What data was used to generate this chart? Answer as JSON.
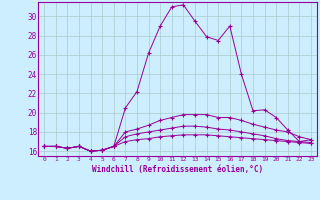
{
  "xlabel": "Windchill (Refroidissement éolien,°C)",
  "background_color": "#cceeff",
  "line_color": "#990099",
  "grid_color": "#aacccc",
  "xmin": -0.5,
  "xmax": 23.5,
  "ymin": 15.5,
  "ymax": 31.5,
  "yticks": [
    16,
    18,
    20,
    22,
    24,
    26,
    28,
    30
  ],
  "xticks": [
    0,
    1,
    2,
    3,
    4,
    5,
    6,
    7,
    8,
    9,
    10,
    11,
    12,
    13,
    14,
    15,
    16,
    17,
    18,
    19,
    20,
    21,
    22,
    23
  ],
  "series": [
    [
      16.5,
      16.5,
      16.3,
      16.5,
      16.0,
      16.1,
      16.5,
      20.5,
      22.2,
      26.2,
      29.0,
      31.0,
      31.2,
      29.5,
      27.9,
      27.5,
      29.0,
      24.0,
      20.2,
      20.3,
      19.5,
      18.2,
      17.0,
      17.2
    ],
    [
      16.5,
      16.5,
      16.3,
      16.5,
      16.0,
      16.1,
      16.5,
      18.0,
      18.3,
      18.7,
      19.2,
      19.5,
      19.8,
      19.8,
      19.8,
      19.5,
      19.5,
      19.2,
      18.8,
      18.5,
      18.2,
      18.0,
      17.5,
      17.2
    ],
    [
      16.5,
      16.5,
      16.3,
      16.5,
      16.0,
      16.1,
      16.5,
      17.5,
      17.8,
      18.0,
      18.2,
      18.4,
      18.6,
      18.6,
      18.5,
      18.3,
      18.2,
      18.0,
      17.8,
      17.6,
      17.3,
      17.1,
      17.0,
      16.9
    ],
    [
      16.5,
      16.5,
      16.3,
      16.5,
      16.0,
      16.1,
      16.5,
      17.0,
      17.2,
      17.3,
      17.5,
      17.6,
      17.7,
      17.7,
      17.7,
      17.6,
      17.5,
      17.4,
      17.3,
      17.2,
      17.1,
      17.0,
      16.9,
      16.8
    ]
  ]
}
